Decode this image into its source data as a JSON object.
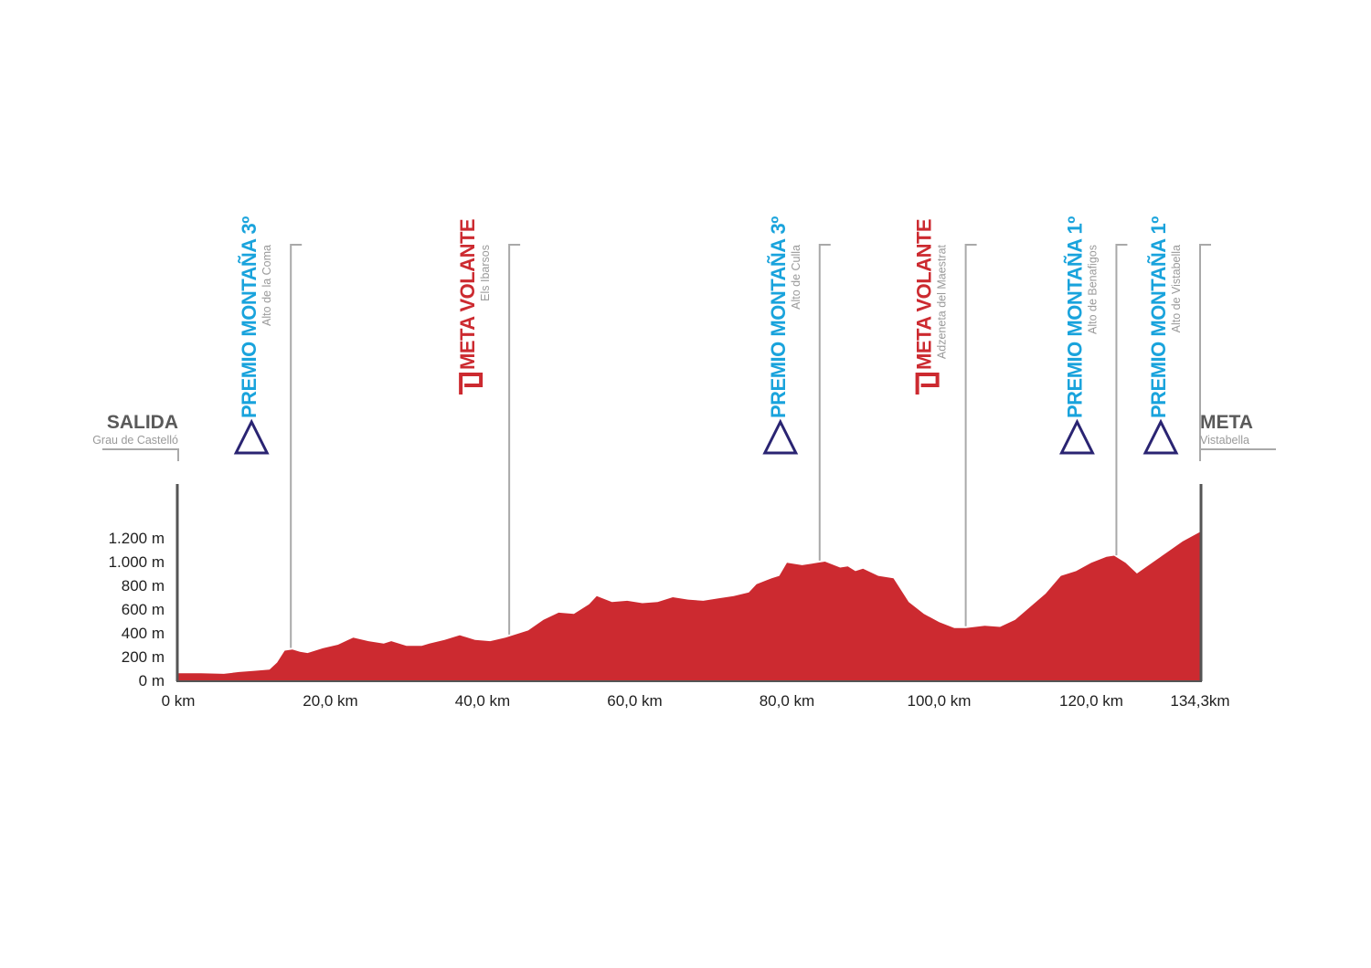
{
  "chart_data": {
    "type": "area",
    "xlabel": "",
    "ylabel": "",
    "xlim": [
      0,
      134.3
    ],
    "ylim": [
      0,
      1280
    ],
    "x_ticks": [
      "0 km",
      "20,0 km",
      "40,0 km",
      "60,0 km",
      "80,0 km",
      "100,0 km",
      "120,0 km",
      "134,3km"
    ],
    "x_tick_values": [
      0,
      20,
      40,
      60,
      80,
      100,
      120,
      134.3
    ],
    "y_ticks": [
      "0 m",
      "200 m",
      "400 m",
      "600 m",
      "800 m",
      "1.000 m",
      "1.200 m"
    ],
    "y_tick_values": [
      0,
      200,
      400,
      600,
      800,
      1000,
      1200
    ],
    "x": [
      0,
      3,
      6,
      8,
      10,
      12,
      13,
      14,
      15,
      16,
      17,
      19,
      21,
      23,
      25,
      27,
      28,
      30,
      32,
      33,
      35,
      37,
      39,
      41,
      43,
      44,
      46,
      48,
      50,
      52,
      54,
      55,
      57,
      59,
      61,
      63,
      65,
      67,
      69,
      71,
      73,
      75,
      76,
      78,
      79,
      80,
      82,
      84,
      85,
      87,
      88,
      89,
      90,
      92,
      94,
      96,
      98,
      100,
      102,
      103.5,
      106,
      108,
      110,
      112,
      114,
      116,
      118,
      120,
      122,
      123,
      124.5,
      126,
      128,
      130,
      132,
      134.3
    ],
    "y": [
      60,
      60,
      55,
      70,
      80,
      90,
      150,
      250,
      260,
      240,
      230,
      270,
      300,
      360,
      330,
      310,
      330,
      290,
      290,
      310,
      340,
      380,
      340,
      330,
      360,
      380,
      420,
      510,
      570,
      560,
      640,
      710,
      660,
      670,
      650,
      660,
      700,
      680,
      670,
      690,
      710,
      740,
      810,
      860,
      880,
      990,
      970,
      990,
      1000,
      950,
      960,
      920,
      940,
      880,
      860,
      660,
      560,
      490,
      440,
      440,
      460,
      450,
      510,
      620,
      730,
      880,
      920,
      990,
      1040,
      1050,
      990,
      900,
      990,
      1080,
      1170,
      1250
    ],
    "markers": [
      {
        "km": 14.8,
        "type": "montana",
        "title": "PREMIO MONTAÑA 3º",
        "subtitle": "Alto de la Coma"
      },
      {
        "km": 43.5,
        "type": "volante",
        "title": "META VOLANTE",
        "subtitle": "Els Ibarsos"
      },
      {
        "km": 84.3,
        "type": "montana",
        "title": "PREMIO MONTAÑA 3º",
        "subtitle": "Alto de Culla"
      },
      {
        "km": 103.5,
        "type": "volante",
        "title": "META VOLANTE",
        "subtitle": "Adzeneta del Maestrat"
      },
      {
        "km": 123.3,
        "type": "montana",
        "title": "PREMIO MONTAÑA 1º",
        "subtitle": "Alto de Benafigos"
      },
      {
        "km": 134.3,
        "type": "montana",
        "title": "PREMIO MONTAÑA 1º",
        "subtitle": "Alto de Vistabella"
      }
    ],
    "start": {
      "title": "SALIDA",
      "subtitle": "Grau de Castelló"
    },
    "finish": {
      "title": "META",
      "subtitle": "Vistabella"
    },
    "colors": {
      "profile_fill": "#cc2a30",
      "montana_text": "#19a3dc",
      "montana_icon": "#2a2472",
      "volante": "#cc2a30",
      "leader_line": "#a9a9a9",
      "axis": "#555555"
    }
  }
}
